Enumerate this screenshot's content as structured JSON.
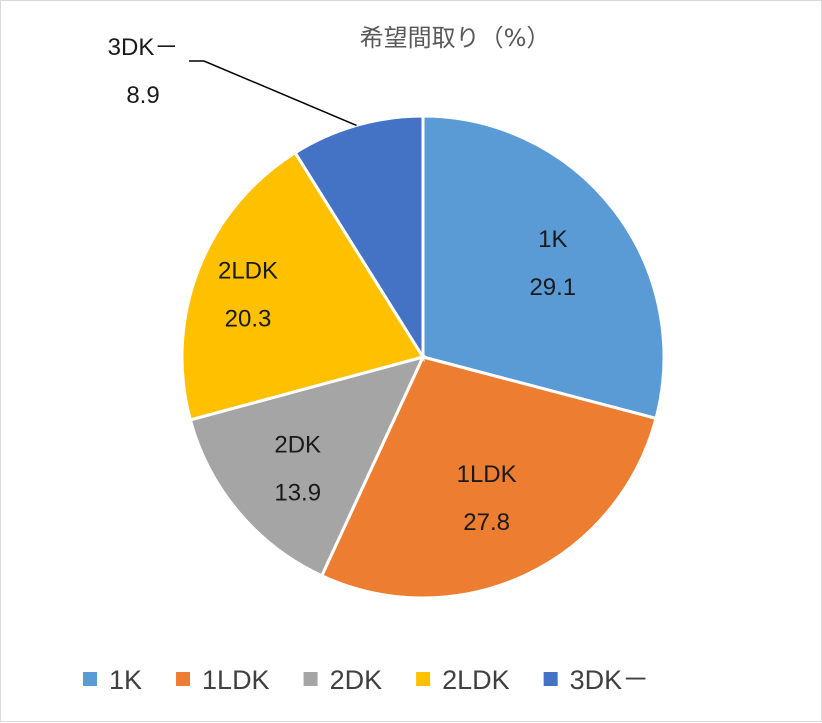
{
  "chart_data": {
    "type": "pie",
    "title": "希望間取り（%）",
    "categories": [
      "1K",
      "1LDK",
      "2DK",
      "2LDK",
      "3DK－"
    ],
    "values": [
      29.1,
      27.8,
      13.9,
      20.3,
      8.9
    ],
    "colors": [
      "#5b9bd5",
      "#ed7d31",
      "#a5a5a5",
      "#ffc000",
      "#4472c4"
    ],
    "label_names": [
      "1K",
      "1LDK",
      "2DK",
      "2LDK",
      "3DK－"
    ],
    "label_values": [
      "29.1",
      "27.8",
      "13.9",
      "20.3",
      "8.9"
    ],
    "legend_placement": "bottom",
    "start_angle_deg": 0,
    "direction": "clockwise"
  }
}
